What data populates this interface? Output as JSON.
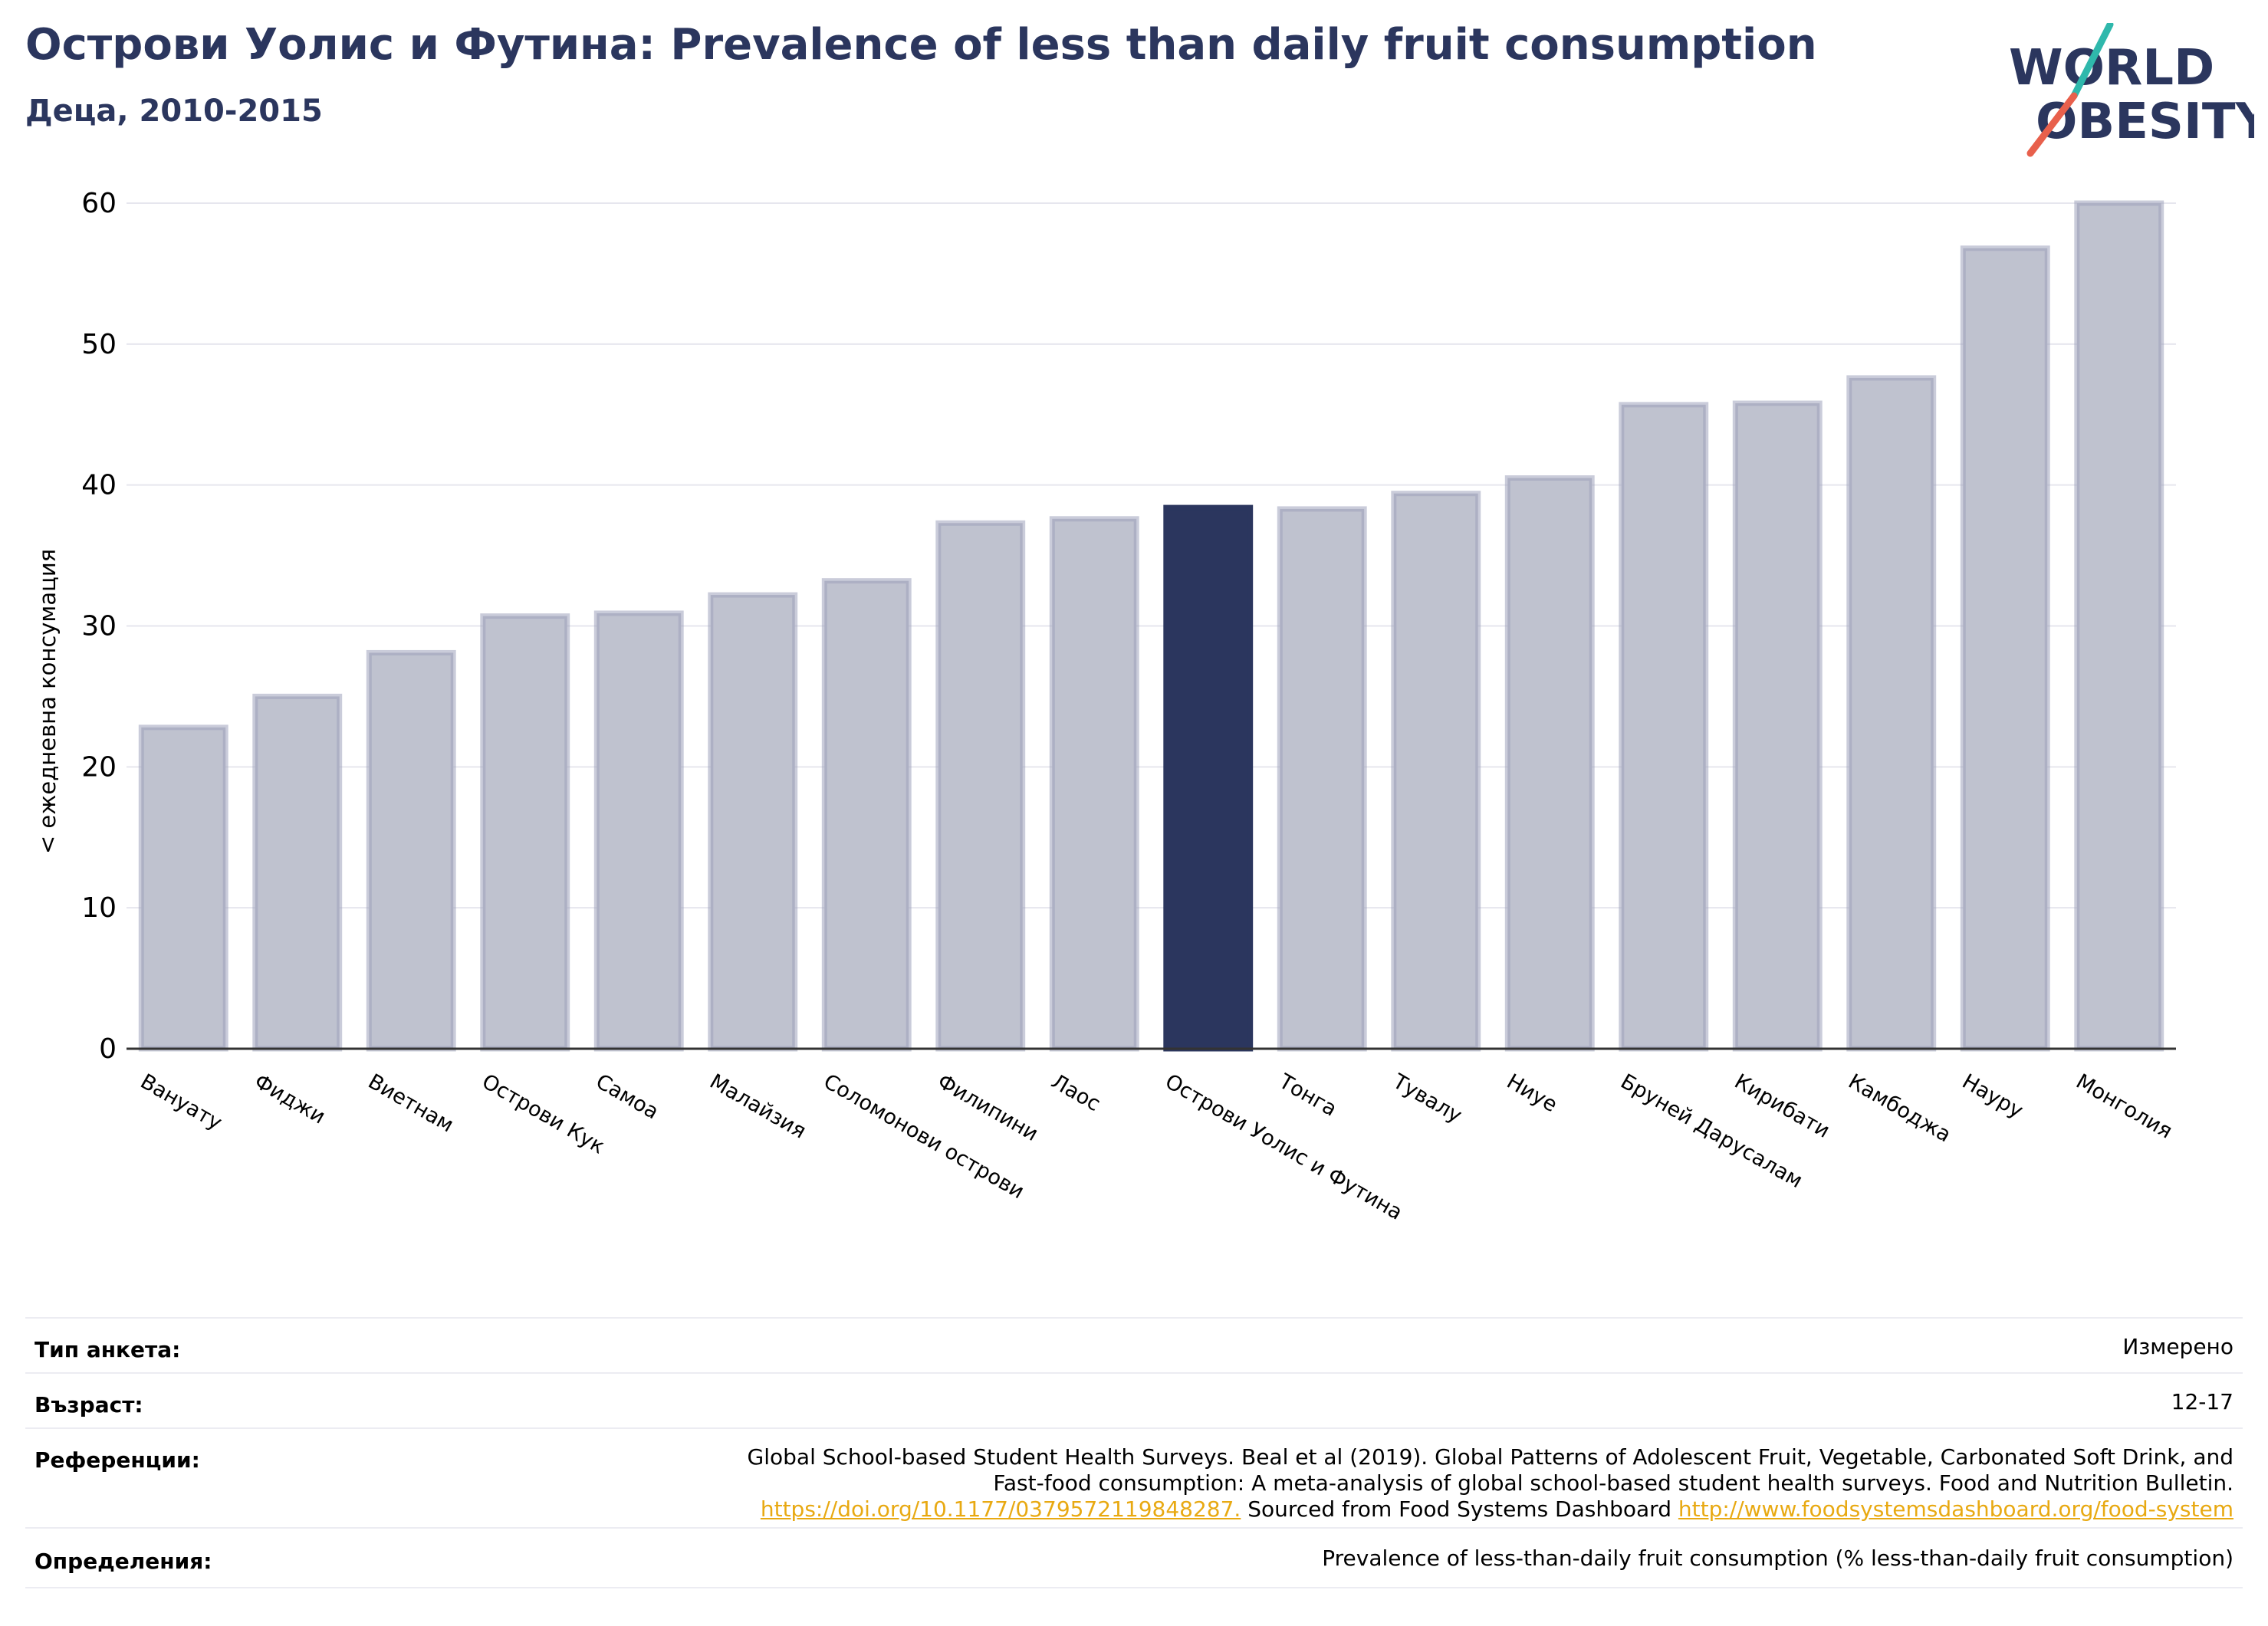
{
  "header": {
    "title": "Острови Уолис и Футина: Prevalence of less than daily fruit consumption",
    "subtitle": "Деца, 2010-2015"
  },
  "logo": {
    "line1": "WORLD",
    "line2": "OBESITY"
  },
  "colors": {
    "bar": "#bfc2cf",
    "bar_border": "#9ea3bb",
    "highlight": "#2b365e",
    "grid": "#e6e6ee",
    "text": "#2b365e"
  },
  "chart_data": {
    "type": "bar",
    "ylabel": "< ежедневна консумация",
    "ylim": [
      0,
      60
    ],
    "yticks": [
      0,
      10,
      20,
      30,
      40,
      50,
      60
    ],
    "grid": true,
    "highlight": "Острови Уолис и Футина",
    "categories": [
      "Вануату",
      "Фиджи",
      "Виетнам",
      "Острови Кук",
      "Самоа",
      "Малайзия",
      "Соломонови острови",
      "Филипини",
      "Лаос",
      "Острови Уолис и Футина",
      "Тонга",
      "Тувалу",
      "Ниуе",
      "Бруней Дарусалам",
      "Кирибати",
      "Камбоджа",
      "Науру",
      "Монголия"
    ],
    "values": [
      22.8,
      25.0,
      28.1,
      30.7,
      30.9,
      32.2,
      33.2,
      37.3,
      37.6,
      38.4,
      38.3,
      39.4,
      40.5,
      45.7,
      45.8,
      47.6,
      56.8,
      60.0
    ]
  },
  "meta": {
    "survey_label": "Тип анкета:",
    "survey_value": "Измерено",
    "age_label": "Възраст:",
    "age_value": "12-17",
    "refs_label": "Референции:",
    "refs_line1": "Global School-based Student Health Surveys. Beal et al (2019). Global Patterns of Adolescent Fruit, Vegetable, Carbonated Soft Drink, and",
    "refs_line2": "Fast-food consumption: A meta-analysis of global school-based student health surveys. Food and Nutrition Bulletin.",
    "refs_link1": "https://doi.org/10.1177/0379572119848287.",
    "refs_mid": " Sourced from Food Systems Dashboard ",
    "refs_link2": "http://www.foodsystemsdashboard.org/food-system",
    "defs_label": "Определения:",
    "defs_value": "Prevalence of less-than-daily fruit consumption (% less-than-daily fruit consumption)"
  }
}
